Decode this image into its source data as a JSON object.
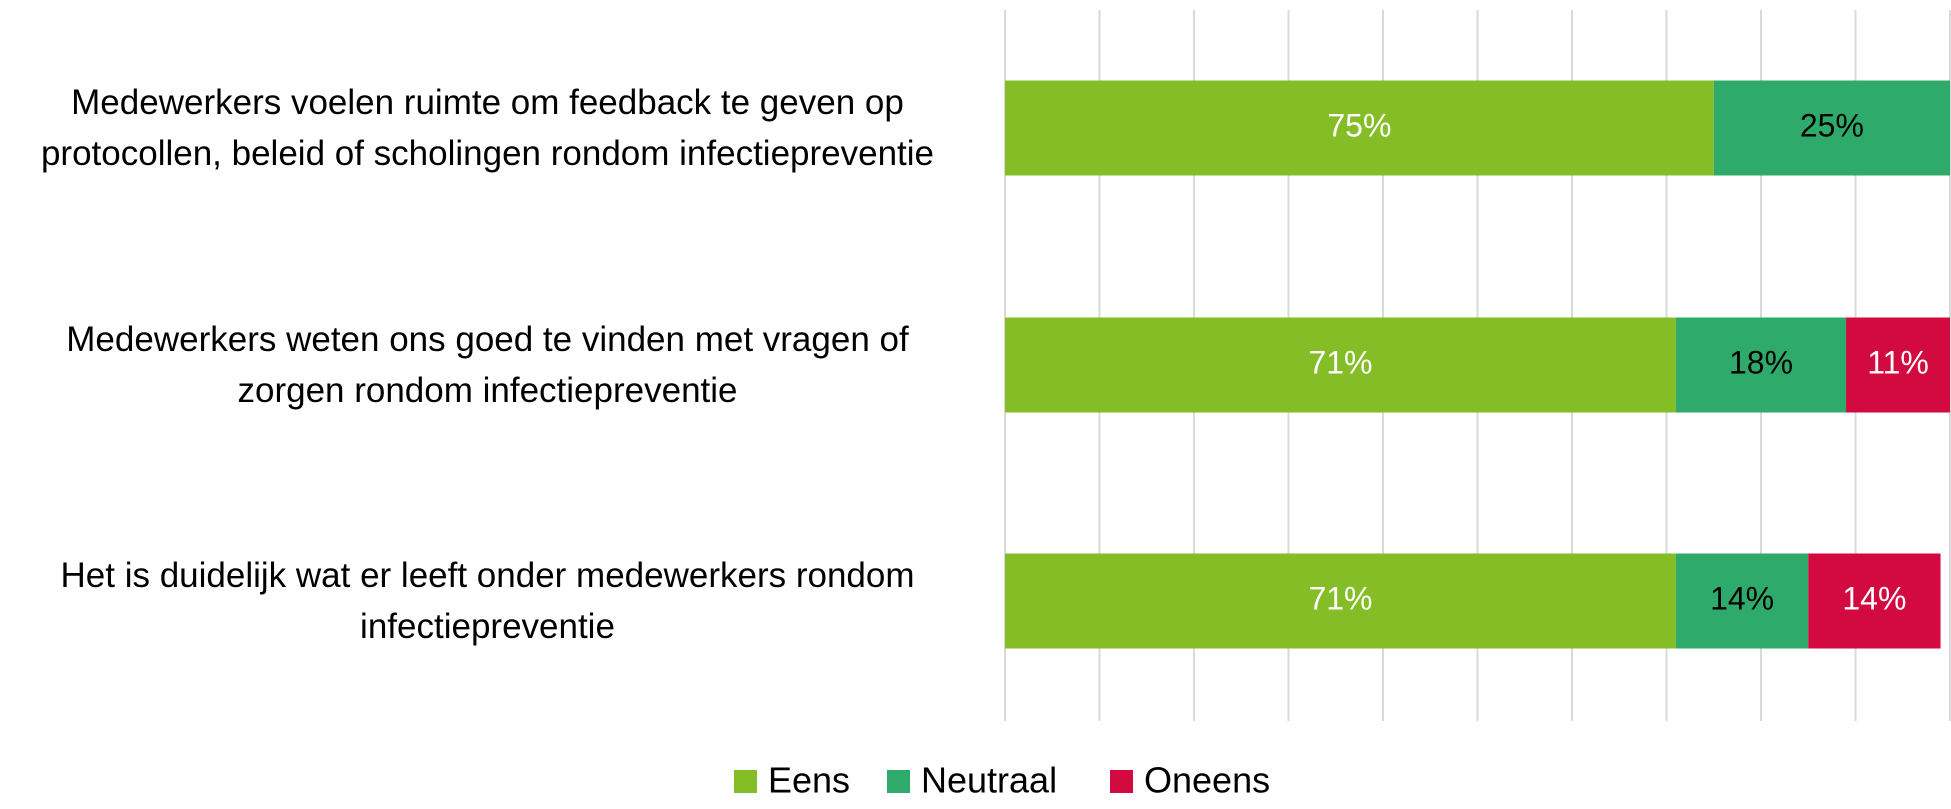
{
  "chart_data": {
    "type": "stacked-barh",
    "categories": [
      "Medewerkers voelen ruimte om feedback te geven op protocollen, beleid of scholingen rondom infectiepreventie",
      "Medewerkers weten ons goed te vinden met vragen of zorgen rondom infectiepreventie",
      "Het is duidelijk wat er leeft onder medewerkers rondom infectiepreventie"
    ],
    "series": [
      {
        "name": "Eens",
        "color": "#84bd26",
        "values": [
          75,
          71,
          71
        ],
        "value_labels": [
          "75%",
          "71%",
          "71%"
        ],
        "label_color": "#ffffff"
      },
      {
        "name": "Neutraal",
        "color": "#2eaa6a",
        "values": [
          25,
          18,
          14
        ],
        "value_labels": [
          "25%",
          "18%",
          "14%"
        ],
        "label_color": "#000000"
      },
      {
        "name": "Oneens",
        "color": "#d20a40",
        "values": [
          null,
          11,
          14
        ],
        "value_labels": [
          null,
          "11%",
          "14%"
        ],
        "label_color": "#ffffff"
      }
    ],
    "xlim": [
      0,
      100
    ],
    "xticks": [
      0,
      10,
      20,
      30,
      40,
      50,
      60,
      70,
      80,
      90,
      100
    ],
    "grid": true,
    "legend": "bottom"
  }
}
